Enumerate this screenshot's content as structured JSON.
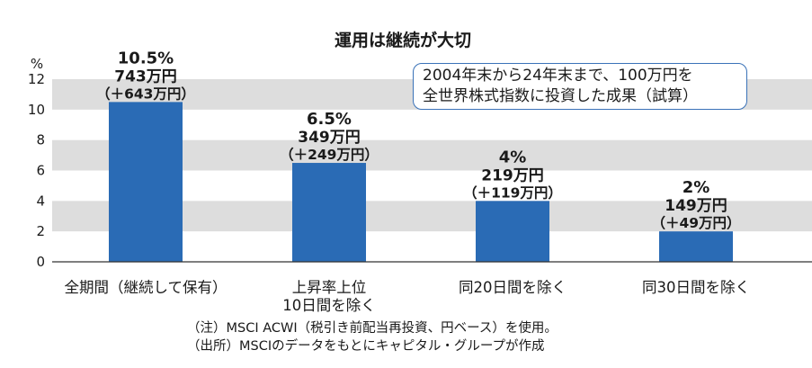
{
  "chart_data": {
    "type": "bar",
    "title": "運用は継続が大切",
    "ylabel": "%",
    "ylim": [
      0,
      12
    ],
    "yticks": [
      "0",
      "2",
      "4",
      "6",
      "8",
      "10",
      "12"
    ],
    "categories": [
      [
        "全期間（継続して保有）"
      ],
      [
        "上昇率上位",
        "10日間を除く"
      ],
      [
        "同20日間を除く"
      ],
      [
        "同30日間を除く"
      ]
    ],
    "values": [
      10.5,
      6.5,
      4,
      2
    ],
    "data_labels": [
      {
        "pct": "10.5%",
        "amount": "743万円",
        "gain": "（＋643万円）"
      },
      {
        "pct": "6.5%",
        "amount": "349万円",
        "gain": "（＋249万円）"
      },
      {
        "pct": "4%",
        "amount": "219万円",
        "gain": "（＋119万円）"
      },
      {
        "pct": "2%",
        "amount": "149万円",
        "gain": "（＋49万円）"
      }
    ],
    "colors": {
      "bar": "#2a6bb5",
      "band": "#dddddd",
      "axis": "#333333"
    },
    "grid": "alternating horizontal bands",
    "legend": "none"
  },
  "note": {
    "line1": "2004年末から24年末まで、100万円を",
    "line2": "全世界株式指数に投資した成果（試算）"
  },
  "footnotes": {
    "note": "（注）MSCI ACWI（税引き前配当再投資、円ベース）を使用。",
    "source": "（出所）MSCIのデータをもとにキャピタル・グループが作成"
  }
}
